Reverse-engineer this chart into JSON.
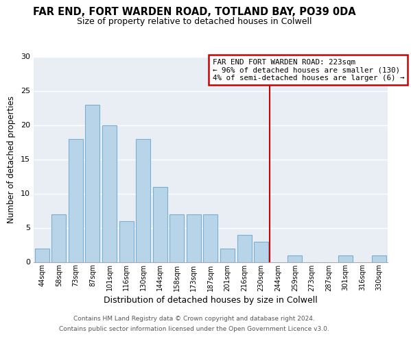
{
  "title": "FAR END, FORT WARDEN ROAD, TOTLAND BAY, PO39 0DA",
  "subtitle": "Size of property relative to detached houses in Colwell",
  "xlabel": "Distribution of detached houses by size in Colwell",
  "ylabel": "Number of detached properties",
  "bar_labels": [
    "44sqm",
    "58sqm",
    "73sqm",
    "87sqm",
    "101sqm",
    "116sqm",
    "130sqm",
    "144sqm",
    "158sqm",
    "173sqm",
    "187sqm",
    "201sqm",
    "216sqm",
    "230sqm",
    "244sqm",
    "259sqm",
    "273sqm",
    "287sqm",
    "301sqm",
    "316sqm",
    "330sqm"
  ],
  "bar_values": [
    2,
    7,
    18,
    23,
    20,
    6,
    18,
    11,
    7,
    7,
    7,
    2,
    4,
    3,
    0,
    1,
    0,
    0,
    1,
    0,
    1
  ],
  "bar_color": "#b8d4e8",
  "bar_edge_color": "#7aafd4",
  "vline_x": 13.5,
  "vline_color": "#cc0000",
  "ylim": [
    0,
    30
  ],
  "yticks": [
    0,
    5,
    10,
    15,
    20,
    25,
    30
  ],
  "annotation_title": "FAR END FORT WARDEN ROAD: 223sqm",
  "annotation_line1": "← 96% of detached houses are smaller (130)",
  "annotation_line2": "4% of semi-detached houses are larger (6) →",
  "annotation_box_color": "#ffffff",
  "annotation_border_color": "#cc0000",
  "footer1": "Contains HM Land Registry data © Crown copyright and database right 2024.",
  "footer2": "Contains public sector information licensed under the Open Government Licence v3.0.",
  "background_color": "#ffffff",
  "plot_bg_color": "#e8eef4",
  "grid_color": "#ffffff"
}
